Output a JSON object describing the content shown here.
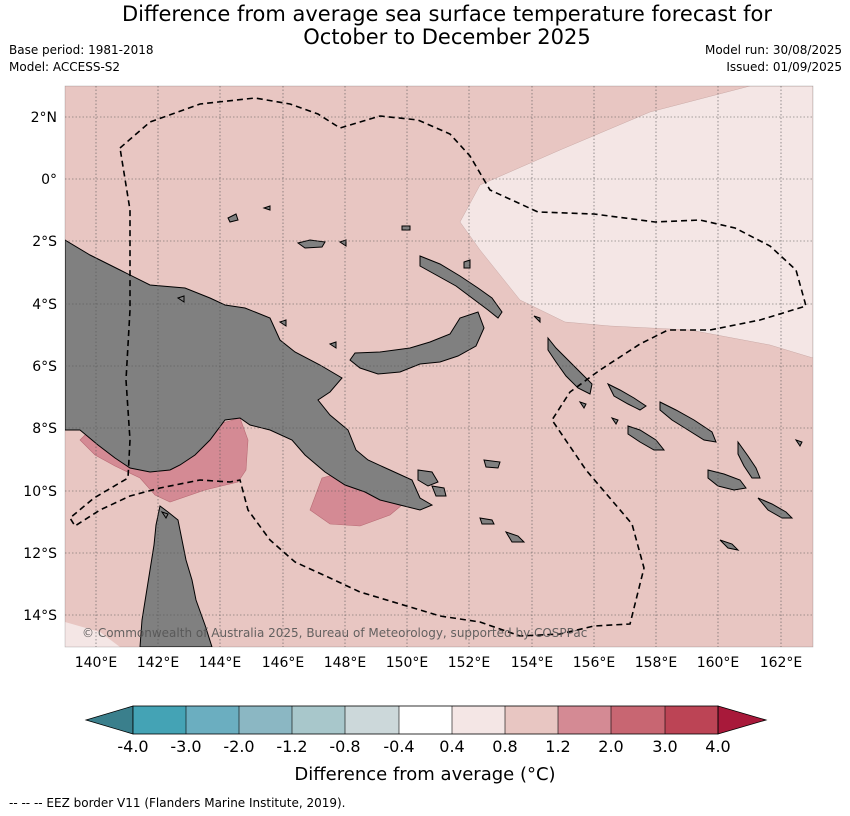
{
  "header": {
    "title_line1": "Difference from average sea surface temperature forecast for",
    "title_line2": "October to December 2025",
    "base_period": "Base period: 1981-2018",
    "model": "Model: ACCESS-S2",
    "model_run": "Model run: 30/08/2025",
    "issued": "Issued: 01/09/2025"
  },
  "map": {
    "lat_labels": [
      "2°N",
      "0°",
      "2°S",
      "4°S",
      "6°S",
      "8°S",
      "10°S",
      "12°S",
      "14°S"
    ],
    "lon_labels": [
      "140°E",
      "142°E",
      "144°E",
      "146°E",
      "148°E",
      "150°E",
      "152°E",
      "154°E",
      "156°E",
      "158°E",
      "160°E",
      "162°E"
    ],
    "copyright": "© Commonwealth of Australia 2025, Bureau of Meteorology, supported by COSPPac",
    "colors": {
      "land": "#808080",
      "anom_0_4_to_0_8": "#f4e6e5",
      "anom_0_8_to_1_2": "#e8c6c2",
      "anom_1_2_to_2_0": "#d48a94",
      "eez_line": "#000000"
    }
  },
  "colorbar": {
    "title": "Difference from average (°C)",
    "ticks": [
      "-4.0",
      "-3.0",
      "-2.0",
      "-1.2",
      "-0.8",
      "-0.4",
      "0.4",
      "0.8",
      "1.2",
      "2.0",
      "3.0",
      "4.0"
    ],
    "colors": {
      "below": "#3a7f8c",
      "bins": [
        "#44a3b5",
        "#6baec0",
        "#8bb7c3",
        "#a8c7cb",
        "#ccd8da",
        "#ffffff",
        "#f4e6e5",
        "#e8c6c2",
        "#d48a94",
        "#c86672",
        "#bc4455"
      ],
      "above": "#a8193a"
    }
  },
  "footnote": "--  --  -- EEZ border V11 (Flanders Marine Institute, 2019)."
}
